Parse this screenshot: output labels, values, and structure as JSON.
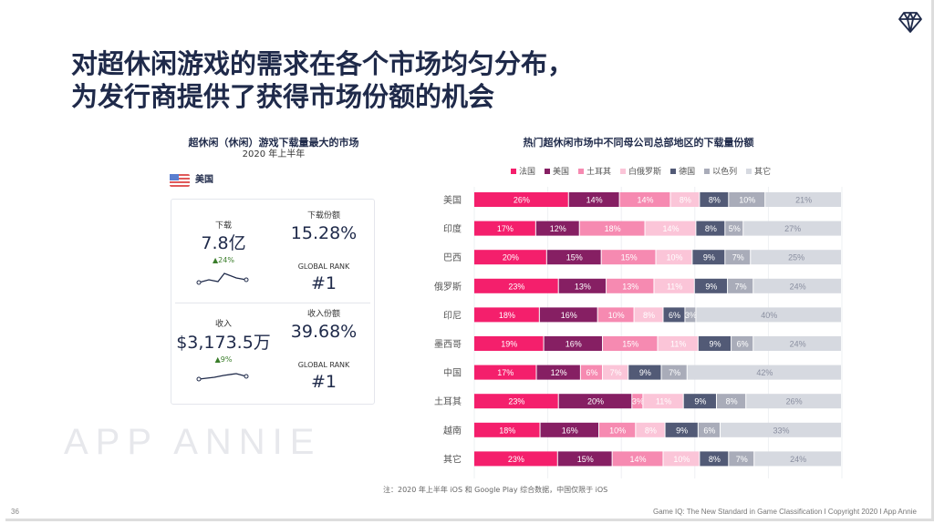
{
  "header": {
    "title_line1": "对超休闲游戏的需求在各个市场均匀分布，",
    "title_line2": "为发行商提供了获得市场份额的机会",
    "logo_icon": "diamond-icon"
  },
  "left_panel": {
    "title": "超休闲（休闲）游戏下载量最大的市场",
    "subtitle": "2020 年上半年",
    "country": "美国",
    "flag_icon": "us-flag-icon",
    "downloads": {
      "label": "下载",
      "value": "7.8亿",
      "change": "▲24%",
      "share_label": "下载份额",
      "share": "15.28%",
      "rank_label": "GLOBAL RANK",
      "rank": "#1"
    },
    "revenue": {
      "label": "收入",
      "value": "$3,173.5万",
      "change": "▲9%",
      "share_label": "收入份额",
      "share": "39.68%",
      "rank_label": "GLOBAL RANK",
      "rank": "#1"
    }
  },
  "watermark": "APP ANNIE",
  "chart_data": {
    "type": "bar",
    "orientation": "horizontal",
    "stacked": true,
    "title": "热门超休闲市场中不同母公司总部地区的下载量份额",
    "legend": "top",
    "grid": true,
    "categories": [
      "美国",
      "印度",
      "巴西",
      "俄罗斯",
      "印尼",
      "墨西哥",
      "中国",
      "土耳其",
      "越南",
      "其它"
    ],
    "series": [
      {
        "name": "法国",
        "color": "#f41f6c",
        "label_color": "#ffffff",
        "values": [
          26,
          17,
          20,
          23,
          18,
          19,
          17,
          23,
          18,
          23
        ]
      },
      {
        "name": "美国",
        "color": "#861f63",
        "label_color": "#ffffff",
        "values": [
          14,
          12,
          15,
          13,
          16,
          16,
          12,
          20,
          16,
          15
        ]
      },
      {
        "name": "土耳其",
        "color": "#f68ab1",
        "label_color": "#ffffff",
        "values": [
          14,
          18,
          15,
          13,
          10,
          15,
          6,
          3,
          10,
          14
        ]
      },
      {
        "name": "白俄罗斯",
        "color": "#fbc5d8",
        "label_color": "#ffffff",
        "values": [
          8,
          14,
          10,
          11,
          8,
          11,
          7,
          11,
          8,
          10
        ]
      },
      {
        "name": "德国",
        "color": "#525a76",
        "label_color": "#ffffff",
        "values": [
          8,
          8,
          9,
          9,
          6,
          9,
          9,
          9,
          9,
          8
        ]
      },
      {
        "name": "以色列",
        "color": "#a9acb9",
        "label_color": "#ffffff",
        "values": [
          10,
          5,
          7,
          7,
          3,
          6,
          7,
          8,
          6,
          7
        ]
      },
      {
        "name": "其它",
        "color": "#d6d9e0",
        "label_color": "#8a8fa0",
        "values": [
          21,
          27,
          25,
          24,
          40,
          24,
          42,
          26,
          33,
          24
        ]
      }
    ]
  },
  "footer": {
    "note": "注：2020 年上半年 iOS 和 Google Play 综合数据，中国仅限于 iOS",
    "page": "36",
    "credit": "Game IQ: The New Standard in Game Classification  I  Copyright 2020  I  App Annie"
  }
}
